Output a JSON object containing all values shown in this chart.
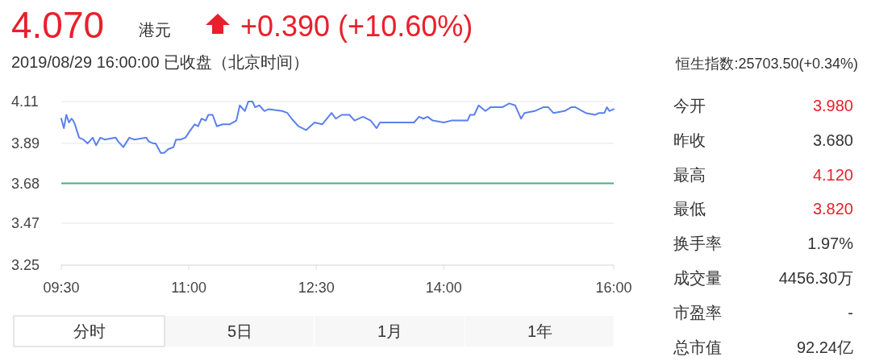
{
  "chart_data": {
    "type": "line",
    "title": "4.070",
    "subtitle": "2019/08/29 16:00:00 已收盘（北京时间）",
    "x": [
      9.5,
      9.53,
      9.56,
      9.59,
      9.62,
      9.64,
      9.66,
      9.71,
      9.76,
      9.81,
      9.87,
      9.91,
      9.96,
      10.01,
      10.14,
      10.17,
      10.23,
      10.3,
      10.36,
      10.5,
      10.53,
      10.58,
      10.61,
      10.67,
      10.71,
      10.76,
      10.82,
      10.85,
      10.9,
      10.96,
      11.02,
      11.07,
      11.11,
      11.15,
      11.2,
      11.23,
      11.28,
      11.33,
      11.4,
      11.48,
      11.56,
      11.6,
      11.66,
      11.7,
      11.75,
      11.78,
      11.83,
      11.89,
      11.94,
      12.1,
      12.16,
      12.21,
      12.29,
      12.38,
      12.48,
      12.57,
      12.68,
      12.73,
      12.8,
      12.89,
      12.95,
      13.05,
      13.14,
      13.21,
      13.25,
      13.36,
      13.65,
      13.71,
      13.76,
      13.81,
      13.87,
      14.0,
      14.09,
      14.28,
      14.31,
      14.36,
      14.41,
      14.49,
      14.55,
      14.69,
      14.77,
      14.84,
      14.88,
      14.91,
      14.95,
      15.07,
      15.17,
      15.23,
      15.29,
      15.42,
      15.5,
      15.55,
      15.67,
      15.78,
      15.83,
      15.89,
      15.92,
      15.95,
      16.0
    ],
    "series": [
      {
        "color": "#5b80ee",
        "values": [
          4.02,
          3.97,
          4.04,
          4.0,
          4.02,
          4.01,
          3.99,
          3.92,
          3.91,
          3.89,
          3.92,
          3.88,
          3.92,
          3.91,
          3.92,
          3.9,
          3.87,
          3.92,
          3.91,
          3.92,
          3.9,
          3.89,
          3.89,
          3.84,
          3.84,
          3.86,
          3.87,
          3.91,
          3.91,
          3.92,
          3.96,
          3.99,
          3.98,
          4.02,
          4.01,
          4.04,
          4.04,
          3.98,
          3.99,
          3.99,
          4.01,
          4.09,
          4.06,
          4.11,
          4.11,
          4.08,
          4.09,
          4.06,
          4.07,
          4.06,
          4.05,
          4.02,
          3.98,
          3.96,
          4.0,
          3.99,
          4.05,
          4.02,
          4.04,
          4.04,
          4.01,
          4.03,
          4.01,
          3.97,
          4.0,
          4.0,
          4.0,
          4.03,
          4.02,
          4.03,
          4.01,
          4.0,
          4.01,
          4.01,
          4.04,
          4.04,
          4.09,
          4.06,
          4.08,
          4.08,
          4.1,
          4.09,
          4.05,
          4.02,
          4.05,
          4.06,
          4.08,
          4.08,
          4.05,
          4.06,
          4.08,
          4.08,
          4.05,
          4.04,
          4.05,
          4.05,
          4.08,
          4.06,
          4.07
        ]
      }
    ],
    "xlim": [
      9.5,
      16
    ],
    "xticks": [
      {
        "value": 9.5,
        "label": "09:30"
      },
      {
        "value": 11,
        "label": "11:00"
      },
      {
        "value": 12.5,
        "label": "12:30"
      },
      {
        "value": 14,
        "label": "14:00"
      },
      {
        "value": 16,
        "label": "16:00"
      }
    ],
    "ylim": [
      3.25,
      4.11
    ],
    "yticks": [
      3.25,
      3.47,
      3.68,
      3.89,
      4.11
    ],
    "ref_lines": [
      {
        "axis": "y",
        "value": 3.68,
        "color": "#3cb878"
      }
    ],
    "grid": "y",
    "marker": "none",
    "line_style": "solid",
    "annotations": [
      "港元",
      "+0.390 (+10.60%)",
      "恒生指数:25703.50(+0.34%)",
      "今开",
      "3.980",
      "昨收",
      "3.680",
      "最高",
      "4.120",
      "最低",
      "3.820",
      "换手率",
      "1.97%",
      "成交量",
      "4456.30万",
      "市盈率",
      "-",
      "总市值",
      "92.24亿",
      "分时",
      "5日",
      "1月",
      "1年"
    ]
  }
}
